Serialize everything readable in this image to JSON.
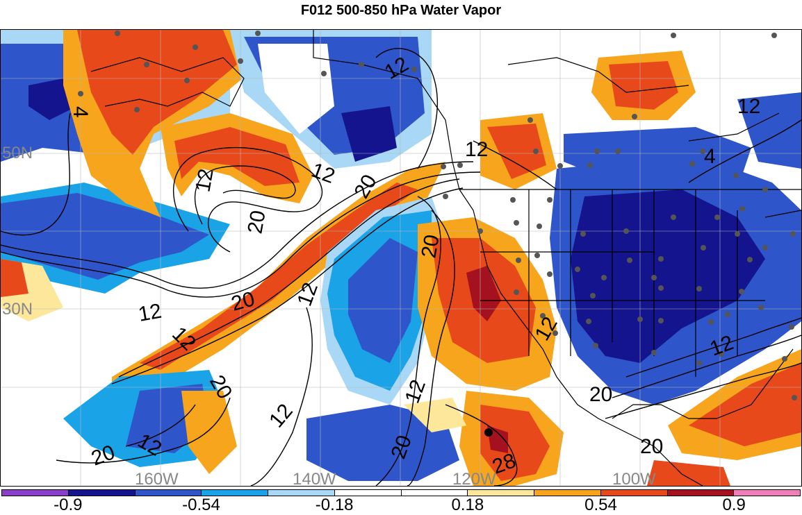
{
  "title": "F012 500-850 hPa Water Vapor",
  "map": {
    "lat_labels": [
      "50N",
      "30N"
    ],
    "lon_labels": [
      "160W",
      "140W",
      "120W",
      "100W"
    ],
    "contour_labels": [
      "12",
      "4",
      "12",
      "4",
      "12",
      "20",
      "12",
      "20",
      "20",
      "12",
      "12",
      "20",
      "12",
      "12",
      "12",
      "20",
      "20",
      "12",
      "12",
      "20",
      "12",
      "20",
      "28",
      "12",
      "20"
    ]
  },
  "colorbar": {
    "colors": [
      "#8a3fc9",
      "#14148f",
      "#2e55c9",
      "#1aa3e6",
      "#a8d8f5",
      "#ffffff",
      "#ffffff",
      "#fde79b",
      "#f6a51c",
      "#e8491a",
      "#a3121e",
      "#ef7fb8"
    ],
    "tick_labels": [
      "-0.9",
      "-0.54",
      "-0.18",
      "0.18",
      "0.54",
      "0.9"
    ]
  }
}
